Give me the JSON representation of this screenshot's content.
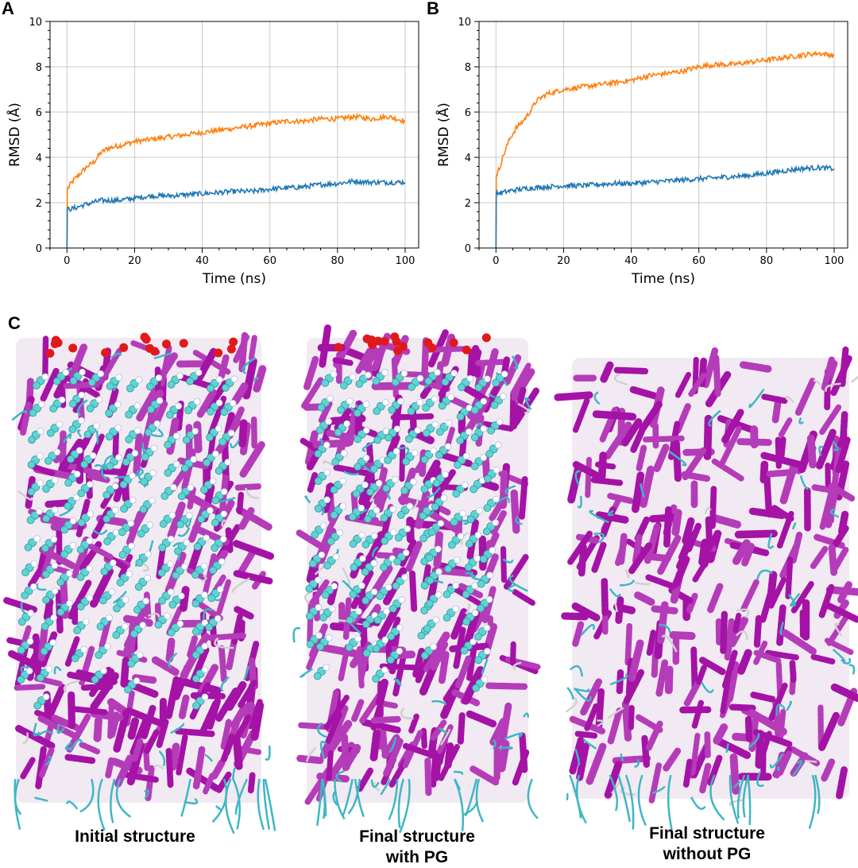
{
  "figure": {
    "panel_labels": [
      "A",
      "B",
      "C"
    ],
    "captions": [
      {
        "lines": [
          "Initial structure"
        ]
      },
      {
        "lines": [
          "Final structure",
          "with PG"
        ]
      },
      {
        "lines": [
          "Final structure",
          "without PG"
        ]
      }
    ]
  },
  "colors": {
    "orange": "#ff7f0e",
    "blue": "#1f77b4",
    "helix": "#a412a6",
    "coil": "#3fb6c4",
    "lipid": "#5fd3d3",
    "oxygen": "#e01a1a"
  },
  "chart_data": [
    {
      "type": "line",
      "panel": "A",
      "xlabel": "Time (ns)",
      "ylabel": "RMSD (Å)",
      "xlim": [
        -5,
        104
      ],
      "ylim": [
        0,
        10
      ],
      "xticks": [
        0,
        20,
        40,
        60,
        80,
        100
      ],
      "yticks": [
        0,
        2,
        4,
        6,
        8,
        10
      ],
      "grid": true,
      "series": [
        {
          "color": "orange",
          "x": [
            0,
            0.1,
            1,
            2,
            4,
            6,
            8,
            10,
            12,
            15,
            20,
            25,
            30,
            35,
            40,
            45,
            50,
            55,
            60,
            65,
            70,
            75,
            80,
            85,
            90,
            95,
            100
          ],
          "y": [
            0,
            2.6,
            2.8,
            3.0,
            3.3,
            3.6,
            3.8,
            4.2,
            4.4,
            4.5,
            4.7,
            4.8,
            4.9,
            5.0,
            5.1,
            5.2,
            5.3,
            5.4,
            5.5,
            5.6,
            5.6,
            5.7,
            5.7,
            5.8,
            5.7,
            5.8,
            5.6
          ]
        },
        {
          "color": "blue",
          "x": [
            0,
            0.1,
            2,
            5,
            10,
            15,
            20,
            25,
            30,
            35,
            40,
            45,
            50,
            55,
            60,
            65,
            70,
            75,
            80,
            85,
            90,
            95,
            100
          ],
          "y": [
            0,
            1.7,
            1.75,
            1.9,
            2.1,
            2.1,
            2.2,
            2.3,
            2.3,
            2.35,
            2.4,
            2.45,
            2.5,
            2.5,
            2.6,
            2.65,
            2.7,
            2.8,
            2.85,
            2.95,
            2.9,
            2.9,
            2.9
          ]
        }
      ]
    },
    {
      "type": "line",
      "panel": "B",
      "xlabel": "Time (ns)",
      "ylabel": "RMSD (Å)",
      "xlim": [
        -5,
        104
      ],
      "ylim": [
        0,
        10
      ],
      "xticks": [
        0,
        20,
        40,
        60,
        80,
        100
      ],
      "yticks": [
        0,
        2,
        4,
        6,
        8,
        10
      ],
      "grid": true,
      "series": [
        {
          "color": "orange",
          "x": [
            0,
            0.1,
            1,
            2,
            4,
            6,
            8,
            10,
            12,
            15,
            20,
            25,
            30,
            35,
            40,
            45,
            50,
            55,
            60,
            65,
            70,
            75,
            80,
            85,
            90,
            95,
            100
          ],
          "y": [
            0,
            3.2,
            3.5,
            4.0,
            4.8,
            5.3,
            5.6,
            6.0,
            6.5,
            6.8,
            7.0,
            7.1,
            7.2,
            7.3,
            7.4,
            7.6,
            7.7,
            7.8,
            8.0,
            8.1,
            8.1,
            8.2,
            8.3,
            8.4,
            8.5,
            8.6,
            8.5
          ]
        },
        {
          "color": "blue",
          "x": [
            0,
            0.1,
            2,
            5,
            10,
            15,
            20,
            25,
            30,
            35,
            40,
            45,
            50,
            55,
            60,
            65,
            70,
            75,
            80,
            85,
            90,
            95,
            100
          ],
          "y": [
            0,
            2.4,
            2.45,
            2.55,
            2.65,
            2.7,
            2.75,
            2.75,
            2.8,
            2.85,
            2.85,
            2.9,
            2.95,
            3.0,
            3.05,
            3.1,
            3.15,
            3.2,
            3.3,
            3.4,
            3.5,
            3.55,
            3.5
          ]
        }
      ]
    }
  ]
}
